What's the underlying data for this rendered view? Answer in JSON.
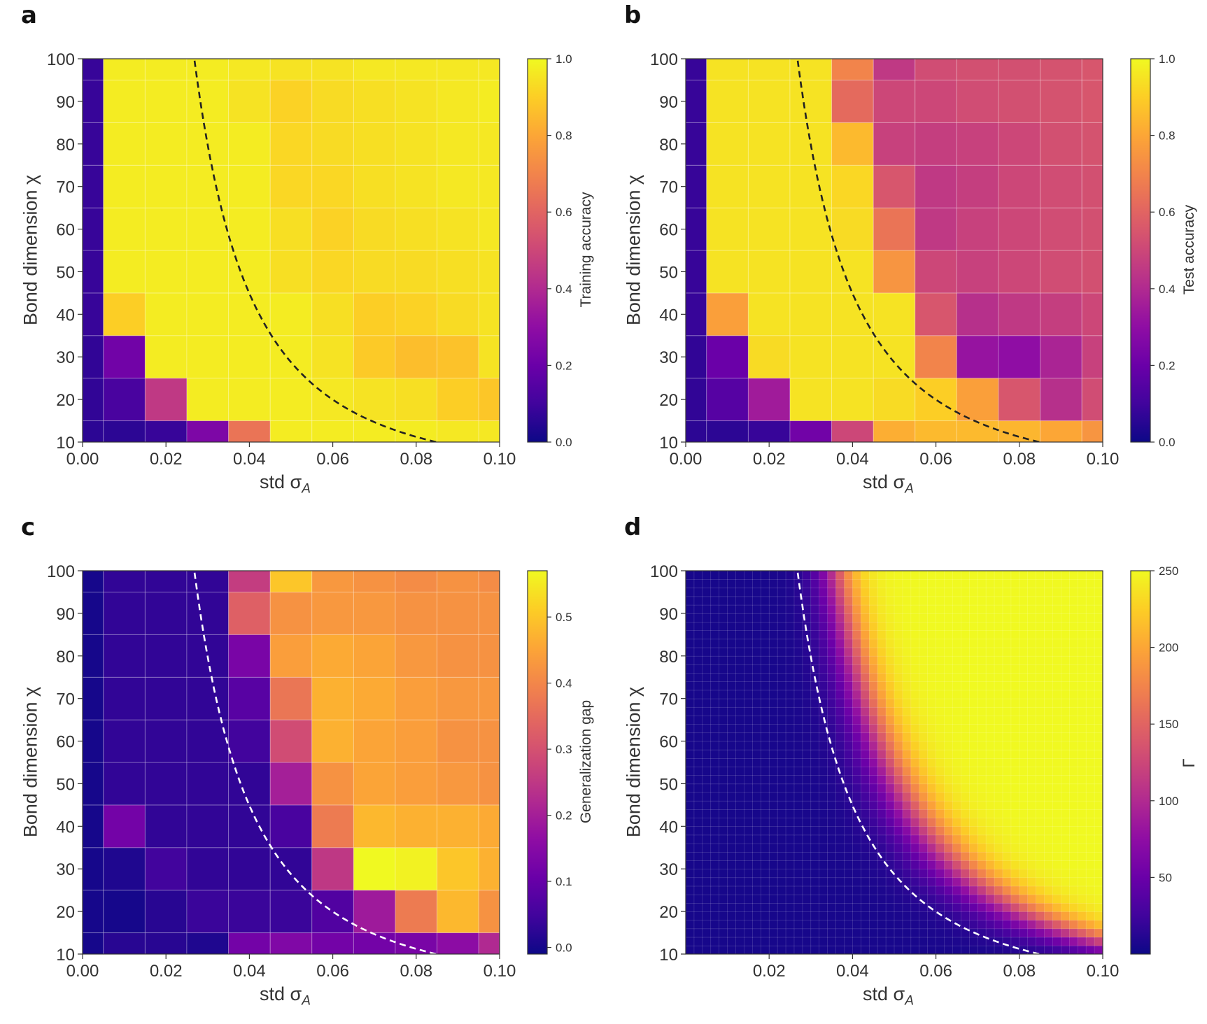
{
  "panels": [
    {
      "letter": "a",
      "xlabel": "std σ",
      "xlabel_sub": "A",
      "ylabel": "Bond dimension χ",
      "colorbar_label": "Training accuracy"
    },
    {
      "letter": "b",
      "xlabel": "std σ",
      "xlabel_sub": "A",
      "ylabel": "Bond dimension χ",
      "colorbar_label": "Test accuracy"
    },
    {
      "letter": "c",
      "xlabel": "std σ",
      "xlabel_sub": "A",
      "ylabel": "Bond dimension χ",
      "colorbar_label": "Generalization gap"
    },
    {
      "letter": "d",
      "xlabel": "std σ",
      "xlabel_sub": "A",
      "ylabel": "Bond dimension χ",
      "colorbar_label": "Γ"
    }
  ],
  "chart_data": [
    {
      "type": "heatmap",
      "colormap": "plasma",
      "x_centers": [
        0.0,
        0.01,
        0.02,
        0.03,
        0.04,
        0.05,
        0.06,
        0.07,
        0.08,
        0.09,
        0.1
      ],
      "y_centers": [
        10,
        20,
        30,
        40,
        50,
        60,
        70,
        80,
        90,
        100
      ],
      "x_tick_labels": [
        "0.00",
        "0.02",
        "0.04",
        "0.06",
        "0.08",
        "0.10"
      ],
      "y_tick_labels": [
        "10",
        "20",
        "30",
        "40",
        "50",
        "60",
        "70",
        "80",
        "90",
        "100"
      ],
      "xlim": [
        0,
        0.1
      ],
      "ylim": [
        10,
        100
      ],
      "colorbar_ticks": [
        "0.0",
        "0.2",
        "0.4",
        "0.6",
        "0.8",
        "1.0"
      ],
      "colorbar_range": [
        0,
        1
      ],
      "values": [
        [
          0.06,
          0.06,
          0.08,
          0.25,
          0.65,
          0.97,
          0.97,
          0.97,
          0.97,
          0.96,
          0.96
        ],
        [
          0.07,
          0.12,
          0.45,
          0.97,
          0.97,
          0.97,
          0.96,
          0.95,
          0.94,
          0.9,
          0.88
        ],
        [
          0.07,
          0.22,
          0.97,
          0.97,
          0.97,
          0.97,
          0.95,
          0.89,
          0.86,
          0.87,
          0.95
        ],
        [
          0.08,
          0.9,
          0.97,
          0.97,
          0.97,
          0.97,
          0.94,
          0.9,
          0.91,
          0.93,
          0.95
        ],
        [
          0.08,
          0.97,
          0.97,
          0.97,
          0.97,
          0.94,
          0.92,
          0.93,
          0.93,
          0.94,
          0.95
        ],
        [
          0.08,
          0.97,
          0.97,
          0.97,
          0.97,
          0.94,
          0.91,
          0.93,
          0.94,
          0.95,
          0.96
        ],
        [
          0.08,
          0.97,
          0.97,
          0.97,
          0.97,
          0.92,
          0.92,
          0.94,
          0.95,
          0.96,
          0.96
        ],
        [
          0.08,
          0.97,
          0.97,
          0.97,
          0.97,
          0.92,
          0.93,
          0.94,
          0.95,
          0.96,
          0.96
        ],
        [
          0.08,
          0.97,
          0.97,
          0.97,
          0.95,
          0.91,
          0.93,
          0.94,
          0.95,
          0.96,
          0.97
        ],
        [
          0.08,
          0.97,
          0.97,
          0.97,
          0.96,
          0.95,
          0.95,
          0.96,
          0.96,
          0.96,
          0.96
        ]
      ],
      "boundary_curve_color": "#222222"
    },
    {
      "type": "heatmap",
      "colormap": "plasma",
      "x_centers": [
        0.0,
        0.01,
        0.02,
        0.03,
        0.04,
        0.05,
        0.06,
        0.07,
        0.08,
        0.09,
        0.1
      ],
      "y_centers": [
        10,
        20,
        30,
        40,
        50,
        60,
        70,
        80,
        90,
        100
      ],
      "x_tick_labels": [
        "0.00",
        "0.02",
        "0.04",
        "0.06",
        "0.08",
        "0.10"
      ],
      "y_tick_labels": [
        "10",
        "20",
        "30",
        "40",
        "50",
        "60",
        "70",
        "80",
        "90",
        "100"
      ],
      "xlim": [
        0,
        0.1
      ],
      "ylim": [
        10,
        100
      ],
      "colorbar_ticks": [
        "0.0",
        "0.2",
        "0.4",
        "0.6",
        "0.8",
        "1.0"
      ],
      "colorbar_range": [
        0,
        1
      ],
      "values": [
        [
          0.06,
          0.06,
          0.08,
          0.22,
          0.5,
          0.82,
          0.85,
          0.85,
          0.84,
          0.8,
          0.75
        ],
        [
          0.07,
          0.15,
          0.35,
          0.95,
          0.95,
          0.93,
          0.9,
          0.78,
          0.55,
          0.42,
          0.52
        ],
        [
          0.07,
          0.2,
          0.93,
          0.95,
          0.95,
          0.95,
          0.7,
          0.32,
          0.3,
          0.38,
          0.48
        ],
        [
          0.08,
          0.78,
          0.95,
          0.95,
          0.95,
          0.95,
          0.55,
          0.42,
          0.45,
          0.47,
          0.5
        ],
        [
          0.08,
          0.95,
          0.95,
          0.95,
          0.95,
          0.75,
          0.5,
          0.48,
          0.5,
          0.52,
          0.53
        ],
        [
          0.08,
          0.95,
          0.95,
          0.95,
          0.93,
          0.65,
          0.45,
          0.48,
          0.5,
          0.52,
          0.53
        ],
        [
          0.08,
          0.95,
          0.95,
          0.95,
          0.92,
          0.55,
          0.45,
          0.47,
          0.5,
          0.52,
          0.53
        ],
        [
          0.08,
          0.95,
          0.95,
          0.95,
          0.85,
          0.48,
          0.47,
          0.48,
          0.5,
          0.53,
          0.54
        ],
        [
          0.08,
          0.95,
          0.95,
          0.95,
          0.62,
          0.5,
          0.5,
          0.52,
          0.53,
          0.54,
          0.55
        ],
        [
          0.08,
          0.95,
          0.95,
          0.95,
          0.7,
          0.45,
          0.52,
          0.53,
          0.53,
          0.54,
          0.55
        ]
      ],
      "boundary_curve_color": "#222222"
    },
    {
      "type": "heatmap",
      "colormap": "plasma",
      "x_centers": [
        0.0,
        0.01,
        0.02,
        0.03,
        0.04,
        0.05,
        0.06,
        0.07,
        0.08,
        0.09,
        0.1
      ],
      "y_centers": [
        10,
        20,
        30,
        40,
        50,
        60,
        70,
        80,
        90,
        100
      ],
      "x_tick_labels": [
        "0.00",
        "0.02",
        "0.04",
        "0.06",
        "0.08",
        "0.10"
      ],
      "y_tick_labels": [
        "10",
        "20",
        "30",
        "40",
        "50",
        "60",
        "70",
        "80",
        "90",
        "100"
      ],
      "xlim": [
        0,
        0.1
      ],
      "ylim": [
        10,
        100
      ],
      "colorbar_ticks": [
        "0.0",
        "0.1",
        "0.2",
        "0.3",
        "0.4",
        "0.5"
      ],
      "colorbar_range": [
        -0.01,
        0.57
      ],
      "values": [
        [
          0.0,
          0.02,
          0.02,
          0.01,
          0.12,
          0.14,
          0.12,
          0.12,
          0.13,
          0.16,
          0.22
        ],
        [
          0.0,
          0.0,
          0.02,
          0.04,
          0.04,
          0.04,
          0.07,
          0.19,
          0.38,
          0.48,
          0.42
        ],
        [
          0.0,
          0.01,
          0.05,
          0.03,
          0.03,
          0.03,
          0.25,
          0.57,
          0.56,
          0.5,
          0.47
        ],
        [
          0.0,
          0.12,
          0.03,
          0.03,
          0.03,
          0.06,
          0.38,
          0.48,
          0.47,
          0.47,
          0.46
        ],
        [
          0.0,
          0.03,
          0.03,
          0.03,
          0.03,
          0.2,
          0.42,
          0.45,
          0.44,
          0.43,
          0.42
        ],
        [
          0.0,
          0.03,
          0.03,
          0.03,
          0.05,
          0.29,
          0.47,
          0.45,
          0.44,
          0.42,
          0.42
        ],
        [
          0.0,
          0.03,
          0.03,
          0.03,
          0.08,
          0.37,
          0.47,
          0.46,
          0.44,
          0.43,
          0.43
        ],
        [
          0.0,
          0.03,
          0.03,
          0.03,
          0.13,
          0.44,
          0.46,
          0.45,
          0.43,
          0.42,
          0.42
        ],
        [
          0.0,
          0.03,
          0.03,
          0.03,
          0.33,
          0.42,
          0.43,
          0.43,
          0.42,
          0.42,
          0.42
        ],
        [
          0.0,
          0.03,
          0.03,
          0.03,
          0.26,
          0.5,
          0.43,
          0.42,
          0.41,
          0.42,
          0.41
        ]
      ],
      "boundary_curve_color": "#ffffff"
    },
    {
      "type": "heatmap",
      "colormap": "plasma",
      "x_tick_labels": [
        "0.02",
        "0.04",
        "0.06",
        "0.08",
        "0.10"
      ],
      "y_tick_labels": [
        "10",
        "20",
        "30",
        "40",
        "50",
        "60",
        "70",
        "80",
        "90",
        "100"
      ],
      "xlim": [
        0,
        0.1
      ],
      "ylim": [
        10,
        100
      ],
      "colorbar_ticks": [
        "50",
        "100",
        "150",
        "200",
        "250"
      ],
      "colorbar_range": [
        0,
        250
      ],
      "grid_resolution": [
        50,
        45
      ],
      "field": "Gamma(sigma, chi) rising sharply across the boundary sigma*sqrt(chi) ≈ 0.268",
      "boundary_curve_color": "#ffffff"
    }
  ]
}
